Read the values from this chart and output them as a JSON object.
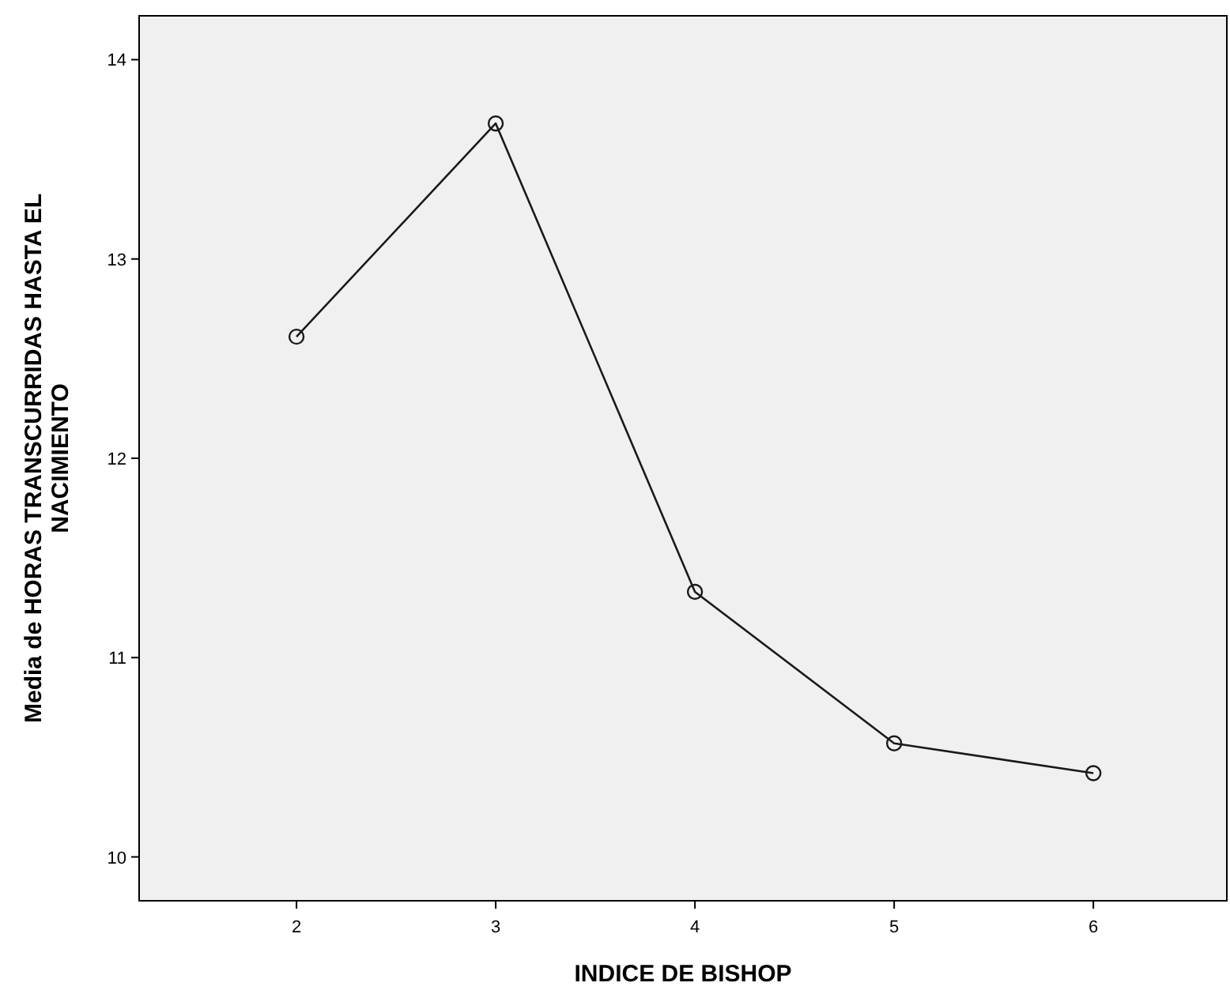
{
  "chart_data": {
    "type": "line",
    "xlabel": "INDICE DE BISHOP",
    "ylabel": "Media de HORAS TRANSCURRIDAS HASTA EL\nNACIMIENTO",
    "x": [
      2,
      3,
      4,
      5,
      6
    ],
    "series": [
      {
        "color": "#1a1a1a",
        "values": [
          12.61,
          13.68,
          11.33,
          10.57,
          10.42
        ]
      }
    ],
    "xlim": [
      1.21,
      6.67
    ],
    "xticks": [
      2,
      3,
      4,
      5,
      6
    ],
    "ylim": [
      9.78,
      14.22
    ],
    "yticks": [
      10,
      11,
      12,
      13,
      14
    ],
    "marker": "circle",
    "line_style": "solid"
  }
}
